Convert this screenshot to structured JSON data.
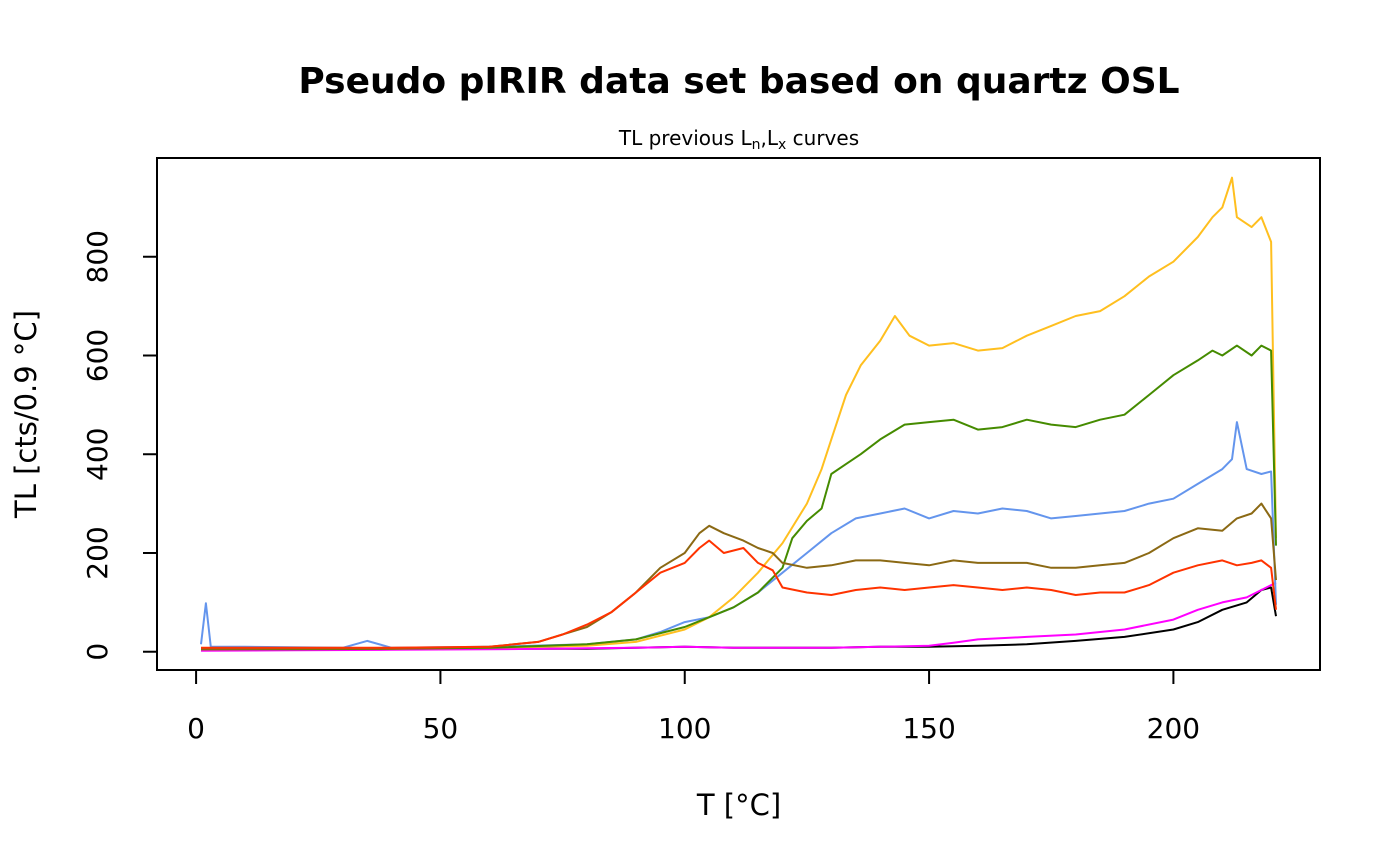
{
  "chart_data": {
    "type": "line",
    "title": "Pseudo pIRIR data set based on quartz OSL",
    "subtitle": "TL previous Lₙ,Lₓ curves",
    "subtitle_main": "TL previous L",
    "subtitle_sub1": "n",
    "subtitle_mid": ",L",
    "subtitle_sub2": "x",
    "subtitle_end": " curves",
    "xlabel": "T [°C]",
    "ylabel": "TL [cts/0.9 °C]",
    "xlim": [
      -8,
      230
    ],
    "ylim": [
      -37,
      1000
    ],
    "xticks": [
      0,
      50,
      100,
      150,
      200
    ],
    "yticks": [
      0,
      200,
      400,
      600,
      800
    ],
    "grid": false,
    "legend": "none",
    "series": [
      {
        "color": "#000000",
        "points": [
          [
            1,
            3
          ],
          [
            20,
            4
          ],
          [
            40,
            5
          ],
          [
            60,
            6
          ],
          [
            80,
            6
          ],
          [
            90,
            8
          ],
          [
            100,
            10
          ],
          [
            110,
            8
          ],
          [
            120,
            8
          ],
          [
            130,
            8
          ],
          [
            140,
            10
          ],
          [
            150,
            10
          ],
          [
            160,
            12
          ],
          [
            170,
            15
          ],
          [
            180,
            22
          ],
          [
            190,
            30
          ],
          [
            200,
            45
          ],
          [
            205,
            60
          ],
          [
            210,
            85
          ],
          [
            215,
            100
          ],
          [
            218,
            125
          ],
          [
            220,
            130
          ],
          [
            221,
            72
          ]
        ]
      },
      {
        "color": "#FF00FF",
        "points": [
          [
            1,
            2
          ],
          [
            20,
            3
          ],
          [
            40,
            4
          ],
          [
            60,
            5
          ],
          [
            80,
            7
          ],
          [
            90,
            8
          ],
          [
            100,
            10
          ],
          [
            110,
            8
          ],
          [
            120,
            8
          ],
          [
            130,
            8
          ],
          [
            140,
            10
          ],
          [
            150,
            12
          ],
          [
            155,
            18
          ],
          [
            160,
            25
          ],
          [
            170,
            30
          ],
          [
            180,
            35
          ],
          [
            190,
            45
          ],
          [
            200,
            65
          ],
          [
            205,
            85
          ],
          [
            210,
            100
          ],
          [
            215,
            110
          ],
          [
            220,
            135
          ],
          [
            221,
            140
          ]
        ]
      },
      {
        "color": "#6495ED",
        "points": [
          [
            1,
            15
          ],
          [
            2,
            98
          ],
          [
            3,
            10
          ],
          [
            10,
            10
          ],
          [
            30,
            8
          ],
          [
            35,
            22
          ],
          [
            40,
            8
          ],
          [
            60,
            10
          ],
          [
            80,
            15
          ],
          [
            90,
            25
          ],
          [
            95,
            40
          ],
          [
            100,
            60
          ],
          [
            105,
            70
          ],
          [
            110,
            90
          ],
          [
            115,
            120
          ],
          [
            120,
            160
          ],
          [
            125,
            200
          ],
          [
            130,
            240
          ],
          [
            135,
            270
          ],
          [
            140,
            280
          ],
          [
            145,
            290
          ],
          [
            150,
            270
          ],
          [
            155,
            285
          ],
          [
            160,
            280
          ],
          [
            165,
            290
          ],
          [
            170,
            285
          ],
          [
            175,
            270
          ],
          [
            180,
            275
          ],
          [
            185,
            280
          ],
          [
            190,
            285
          ],
          [
            195,
            300
          ],
          [
            200,
            310
          ],
          [
            205,
            340
          ],
          [
            210,
            370
          ],
          [
            212,
            390
          ],
          [
            213,
            465
          ],
          [
            215,
            370
          ],
          [
            218,
            360
          ],
          [
            220,
            365
          ],
          [
            221,
            95
          ]
        ]
      },
      {
        "color": "#FFBF1F",
        "points": [
          [
            1,
            5
          ],
          [
            20,
            6
          ],
          [
            40,
            6
          ],
          [
            60,
            8
          ],
          [
            80,
            12
          ],
          [
            90,
            20
          ],
          [
            100,
            45
          ],
          [
            105,
            70
          ],
          [
            110,
            110
          ],
          [
            115,
            160
          ],
          [
            120,
            220
          ],
          [
            125,
            300
          ],
          [
            128,
            370
          ],
          [
            130,
            430
          ],
          [
            133,
            520
          ],
          [
            136,
            580
          ],
          [
            140,
            630
          ],
          [
            143,
            680
          ],
          [
            146,
            640
          ],
          [
            150,
            620
          ],
          [
            155,
            625
          ],
          [
            160,
            610
          ],
          [
            165,
            615
          ],
          [
            170,
            640
          ],
          [
            175,
            660
          ],
          [
            180,
            680
          ],
          [
            185,
            690
          ],
          [
            190,
            720
          ],
          [
            195,
            760
          ],
          [
            200,
            790
          ],
          [
            205,
            840
          ],
          [
            208,
            880
          ],
          [
            210,
            900
          ],
          [
            212,
            960
          ],
          [
            213,
            880
          ],
          [
            216,
            860
          ],
          [
            218,
            880
          ],
          [
            220,
            830
          ],
          [
            221,
            230
          ]
        ]
      },
      {
        "color": "#458B00",
        "points": [
          [
            1,
            5
          ],
          [
            20,
            5
          ],
          [
            40,
            6
          ],
          [
            60,
            8
          ],
          [
            80,
            15
          ],
          [
            90,
            25
          ],
          [
            100,
            50
          ],
          [
            105,
            70
          ],
          [
            110,
            90
          ],
          [
            115,
            120
          ],
          [
            120,
            170
          ],
          [
            122,
            230
          ],
          [
            125,
            265
          ],
          [
            128,
            290
          ],
          [
            130,
            360
          ],
          [
            133,
            380
          ],
          [
            136,
            400
          ],
          [
            140,
            430
          ],
          [
            145,
            460
          ],
          [
            150,
            465
          ],
          [
            155,
            470
          ],
          [
            160,
            450
          ],
          [
            165,
            455
          ],
          [
            170,
            470
          ],
          [
            175,
            460
          ],
          [
            180,
            455
          ],
          [
            185,
            470
          ],
          [
            190,
            480
          ],
          [
            195,
            520
          ],
          [
            200,
            560
          ],
          [
            205,
            590
          ],
          [
            208,
            610
          ],
          [
            210,
            600
          ],
          [
            213,
            620
          ],
          [
            216,
            600
          ],
          [
            218,
            620
          ],
          [
            220,
            610
          ],
          [
            221,
            215
          ]
        ]
      },
      {
        "color": "#8B6914",
        "points": [
          [
            1,
            5
          ],
          [
            20,
            6
          ],
          [
            40,
            6
          ],
          [
            60,
            10
          ],
          [
            70,
            20
          ],
          [
            80,
            50
          ],
          [
            85,
            80
          ],
          [
            90,
            120
          ],
          [
            95,
            170
          ],
          [
            100,
            200
          ],
          [
            103,
            240
          ],
          [
            105,
            255
          ],
          [
            108,
            240
          ],
          [
            112,
            225
          ],
          [
            115,
            210
          ],
          [
            118,
            200
          ],
          [
            120,
            180
          ],
          [
            125,
            170
          ],
          [
            130,
            175
          ],
          [
            135,
            185
          ],
          [
            140,
            185
          ],
          [
            145,
            180
          ],
          [
            150,
            175
          ],
          [
            155,
            185
          ],
          [
            160,
            180
          ],
          [
            165,
            180
          ],
          [
            170,
            180
          ],
          [
            175,
            170
          ],
          [
            180,
            170
          ],
          [
            185,
            175
          ],
          [
            190,
            180
          ],
          [
            195,
            200
          ],
          [
            200,
            230
          ],
          [
            205,
            250
          ],
          [
            210,
            245
          ],
          [
            213,
            270
          ],
          [
            216,
            280
          ],
          [
            218,
            300
          ],
          [
            220,
            270
          ],
          [
            221,
            145
          ]
        ]
      },
      {
        "color": "#FF3300",
        "points": [
          [
            1,
            8
          ],
          [
            20,
            8
          ],
          [
            40,
            8
          ],
          [
            60,
            10
          ],
          [
            70,
            20
          ],
          [
            75,
            35
          ],
          [
            80,
            55
          ],
          [
            85,
            80
          ],
          [
            90,
            120
          ],
          [
            95,
            160
          ],
          [
            100,
            180
          ],
          [
            103,
            210
          ],
          [
            105,
            225
          ],
          [
            108,
            200
          ],
          [
            112,
            210
          ],
          [
            115,
            180
          ],
          [
            118,
            165
          ],
          [
            120,
            130
          ],
          [
            125,
            120
          ],
          [
            130,
            115
          ],
          [
            135,
            125
          ],
          [
            140,
            130
          ],
          [
            145,
            125
          ],
          [
            150,
            130
          ],
          [
            155,
            135
          ],
          [
            160,
            130
          ],
          [
            165,
            125
          ],
          [
            170,
            130
          ],
          [
            175,
            125
          ],
          [
            180,
            115
          ],
          [
            185,
            120
          ],
          [
            190,
            120
          ],
          [
            195,
            135
          ],
          [
            200,
            160
          ],
          [
            205,
            175
          ],
          [
            210,
            185
          ],
          [
            213,
            175
          ],
          [
            216,
            180
          ],
          [
            218,
            185
          ],
          [
            220,
            170
          ],
          [
            221,
            85
          ]
        ]
      }
    ]
  }
}
